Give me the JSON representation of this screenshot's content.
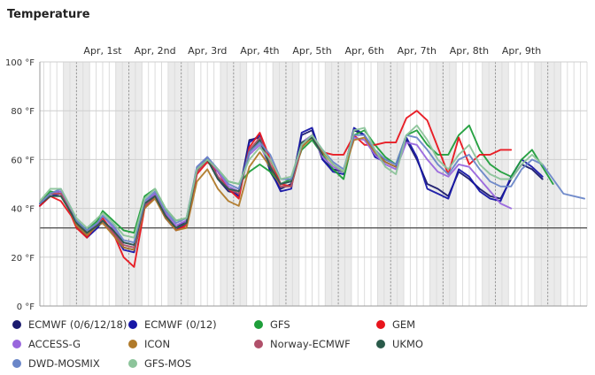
{
  "chart_data": {
    "type": "line",
    "title": "Temperature",
    "days": [
      "Apr, 1st",
      "Apr, 2nd",
      "Apr, 3rd",
      "Apr, 4th",
      "Apr, 5th",
      "Apr, 6th",
      "Apr, 7th",
      "Apr, 8th",
      "Apr, 9th"
    ],
    "y_ticks": [
      "100 °F",
      "80 °F",
      "60 °F",
      "40 °F",
      "20 °F",
      "0 °F"
    ],
    "ylim": [
      0,
      100
    ],
    "x_range_days": [
      0.3,
      10.75
    ],
    "reference_line": 32,
    "grid": true,
    "legend_position": "bottom",
    "series": [
      {
        "name": "ECMWF (0/6/12/18)",
        "color": "#1a1a6e",
        "x": [
          0.3,
          0.5,
          0.7,
          0.9,
          1.0,
          1.2,
          1.4,
          1.5,
          1.7,
          1.9,
          2.1,
          2.3,
          2.5,
          2.7,
          2.9,
          3.1,
          3.3,
          3.5,
          3.7,
          3.9,
          4.1,
          4.3,
          4.5,
          4.7,
          4.9,
          5.1,
          5.3,
          5.5,
          5.7,
          5.9,
          6.1,
          6.3,
          6.5,
          6.7,
          6.9,
          7.1,
          7.3,
          7.5,
          7.7,
          7.9,
          8.1,
          8.3,
          8.5,
          8.7,
          8.9,
          9.1,
          9.3,
          9.5,
          9.7,
          9.9
        ],
        "y": [
          41,
          46,
          47,
          38,
          34,
          29,
          33,
          35,
          31,
          24,
          23,
          42,
          46,
          37,
          32,
          35,
          56,
          60,
          52,
          47,
          46,
          68,
          69,
          55,
          48,
          50,
          70,
          72,
          60,
          56,
          55,
          72,
          70,
          62,
          60,
          58,
          68,
          60,
          50,
          48,
          45,
          55,
          52,
          48,
          45,
          44,
          52,
          58,
          56,
          52
        ]
      },
      {
        "name": "ECMWF (0/12)",
        "color": "#1616a6",
        "x": [
          0.3,
          0.5,
          0.7,
          0.9,
          1.0,
          1.2,
          1.4,
          1.5,
          1.7,
          1.9,
          2.1,
          2.3,
          2.5,
          2.7,
          2.9,
          3.1,
          3.3,
          3.5,
          3.7,
          3.9,
          4.1,
          4.3,
          4.5,
          4.7,
          4.9,
          5.1,
          5.3,
          5.5,
          5.7,
          5.9,
          6.1,
          6.3,
          6.5,
          6.7,
          6.9,
          7.1,
          7.3,
          7.5,
          7.7,
          7.9,
          8.1,
          8.3,
          8.5,
          8.7,
          8.9,
          9.1,
          9.3,
          9.5,
          9.7,
          9.9
        ],
        "y": [
          41,
          45,
          46,
          38,
          33,
          28,
          32,
          35,
          30,
          23,
          22,
          41,
          45,
          36,
          31,
          34,
          55,
          61,
          53,
          48,
          45,
          67,
          70,
          56,
          47,
          48,
          71,
          73,
          60,
          55,
          54,
          73,
          70,
          61,
          59,
          57,
          69,
          61,
          48,
          46,
          44,
          56,
          53,
          47,
          44,
          43,
          53,
          60,
          57,
          53
        ]
      },
      {
        "name": "GFS",
        "color": "#1e9e3a",
        "x": [
          0.3,
          0.5,
          0.7,
          0.9,
          1.0,
          1.2,
          1.4,
          1.5,
          1.7,
          1.9,
          2.1,
          2.3,
          2.5,
          2.7,
          2.9,
          3.1,
          3.3,
          3.5,
          3.7,
          3.9,
          4.1,
          4.3,
          4.5,
          4.7,
          4.9,
          5.1,
          5.3,
          5.5,
          5.7,
          5.9,
          6.1,
          6.3,
          6.5,
          6.7,
          6.9,
          7.1,
          7.3,
          7.5,
          7.7,
          7.9,
          8.1,
          8.3,
          8.5,
          8.7,
          8.9,
          9.1,
          9.3,
          9.5,
          9.7,
          9.9,
          10.1
        ],
        "y": [
          42,
          47,
          46,
          38,
          35,
          31,
          35,
          39,
          35,
          31,
          30,
          45,
          48,
          40,
          35,
          36,
          55,
          60,
          56,
          51,
          50,
          55,
          58,
          55,
          50,
          52,
          64,
          68,
          62,
          56,
          52,
          70,
          72,
          66,
          61,
          58,
          70,
          72,
          66,
          62,
          62,
          70,
          74,
          64,
          58,
          55,
          53,
          60,
          64,
          57,
          50
        ]
      },
      {
        "name": "GEM",
        "color": "#e8141c",
        "x": [
          0.3,
          0.5,
          0.7,
          0.9,
          1.0,
          1.2,
          1.4,
          1.5,
          1.7,
          1.9,
          2.1,
          2.3,
          2.5,
          2.7,
          2.9,
          3.1,
          3.3,
          3.5,
          3.7,
          3.9,
          4.1,
          4.3,
          4.5,
          4.7,
          4.9,
          5.1,
          5.3,
          5.5,
          5.7,
          5.9,
          6.1,
          6.3,
          6.5,
          6.7,
          6.9,
          7.1,
          7.3,
          7.5,
          7.7,
          7.9,
          8.1,
          8.3,
          8.5,
          8.7,
          8.9,
          9.1,
          9.3
        ],
        "y": [
          41,
          45,
          43,
          37,
          32,
          28,
          34,
          36,
          30,
          20,
          16,
          40,
          45,
          38,
          31,
          33,
          54,
          59,
          55,
          48,
          44,
          65,
          71,
          60,
          50,
          49,
          65,
          70,
          63,
          62,
          62,
          70,
          66,
          66,
          67,
          67,
          77,
          80,
          76,
          65,
          54,
          69,
          58,
          62,
          62,
          64,
          64
        ]
      },
      {
        "name": "ACCESS-G",
        "color": "#9966dd",
        "x": [
          0.3,
          0.5,
          0.7,
          0.9,
          1.0,
          1.2,
          1.4,
          1.5,
          1.7,
          1.9,
          2.1,
          2.3,
          2.5,
          2.7,
          2.9,
          3.1,
          3.3,
          3.5,
          3.7,
          3.9,
          4.1,
          4.3,
          4.5,
          4.7,
          4.9,
          5.1,
          5.3,
          5.5,
          5.7,
          5.9,
          6.1,
          6.3,
          6.5,
          6.7,
          6.9,
          7.1,
          7.3,
          7.5,
          7.7,
          7.9,
          8.1,
          8.3,
          8.5,
          8.7,
          8.9,
          9.1,
          9.3
        ],
        "y": [
          42,
          46,
          47,
          39,
          34,
          30,
          34,
          37,
          32,
          26,
          25,
          42,
          46,
          38,
          33,
          35,
          57,
          61,
          55,
          49,
          47,
          62,
          66,
          57,
          50,
          51,
          67,
          70,
          61,
          57,
          55,
          69,
          68,
          62,
          58,
          56,
          67,
          66,
          60,
          55,
          53,
          58,
          57,
          52,
          47,
          42,
          40
        ]
      },
      {
        "name": "ICON",
        "color": "#b07a2a",
        "x": [
          0.3,
          0.5,
          0.7,
          0.9,
          1.0,
          1.2,
          1.4,
          1.5,
          1.7,
          1.9,
          2.1,
          2.3,
          2.5,
          2.7,
          2.9,
          3.1,
          3.3,
          3.5,
          3.7,
          3.9,
          4.1,
          4.3,
          4.5,
          4.7,
          4.9,
          5.1,
          5.3,
          5.5,
          5.7,
          5.9,
          6.1,
          6.3,
          6.5,
          6.7,
          6.9,
          7.1
        ],
        "y": [
          42,
          46,
          46,
          38,
          33,
          29,
          33,
          34,
          29,
          24,
          23,
          40,
          44,
          36,
          31,
          32,
          51,
          56,
          48,
          43,
          41,
          57,
          63,
          57,
          49,
          49,
          65,
          69,
          63,
          58,
          55,
          68,
          69,
          63,
          59,
          57
        ]
      },
      {
        "name": "Norway-ECMWF",
        "color": "#b0506a",
        "x": [
          0.3,
          0.5,
          0.7,
          0.9,
          1.0,
          1.2,
          1.4,
          1.5,
          1.7,
          1.9,
          2.1,
          2.3,
          2.5,
          2.7,
          2.9,
          3.1,
          3.3,
          3.5,
          3.7,
          3.9,
          4.1,
          4.3,
          4.5,
          4.7,
          4.9,
          5.1,
          5.3,
          5.5,
          5.7
        ],
        "y": [
          42,
          46,
          46,
          38,
          34,
          30,
          33,
          35,
          30,
          25,
          24,
          41,
          45,
          37,
          32,
          34,
          55,
          60,
          53,
          48,
          46,
          64,
          69,
          58,
          49,
          49,
          66,
          70,
          62
        ]
      },
      {
        "name": "UKMO",
        "color": "#2a5a4a",
        "x": [
          0.3,
          0.5,
          0.7,
          0.9,
          1.0,
          1.2,
          1.4,
          1.5,
          1.7,
          1.9,
          2.1,
          2.3,
          2.5,
          2.7,
          2.9,
          3.1,
          3.3,
          3.5,
          3.7,
          3.9,
          4.1,
          4.3,
          4.5,
          4.7,
          4.9,
          5.1,
          5.3,
          5.5,
          5.7
        ],
        "y": [
          42,
          45,
          45,
          38,
          34,
          30,
          33,
          35,
          31,
          26,
          25,
          42,
          45,
          37,
          32,
          34,
          56,
          60,
          52,
          48,
          47,
          63,
          68,
          57,
          50,
          51,
          67,
          69,
          62
        ]
      },
      {
        "name": "DWD-MOSMIX",
        "color": "#6a86c8",
        "x": [
          0.3,
          0.5,
          0.7,
          0.9,
          1.0,
          1.2,
          1.4,
          1.5,
          1.7,
          1.9,
          2.1,
          2.3,
          2.5,
          2.7,
          2.9,
          3.1,
          3.3,
          3.5,
          3.7,
          3.9,
          4.1,
          4.3,
          4.5,
          4.7,
          4.9,
          5.1,
          5.3,
          5.5,
          5.7,
          5.9,
          6.1,
          6.3,
          6.5,
          6.7,
          6.9,
          7.1,
          7.3,
          7.5,
          7.7,
          7.9,
          8.1,
          8.3,
          8.5,
          8.7,
          8.9,
          9.1,
          9.3,
          9.5,
          9.7,
          9.9,
          10.1,
          10.3,
          10.5,
          10.7
        ],
        "y": [
          42,
          46,
          48,
          40,
          35,
          31,
          34,
          37,
          33,
          27,
          26,
          43,
          47,
          39,
          34,
          36,
          57,
          61,
          56,
          50,
          48,
          63,
          67,
          62,
          52,
          52,
          66,
          70,
          64,
          59,
          56,
          70,
          70,
          64,
          60,
          58,
          70,
          69,
          64,
          58,
          54,
          60,
          62,
          56,
          51,
          49,
          49,
          56,
          60,
          58,
          52,
          46,
          45,
          44
        ]
      },
      {
        "name": "GFS-MOS",
        "color": "#8cc49a",
        "x": [
          0.3,
          0.5,
          0.7,
          0.9,
          1.0,
          1.2,
          1.4,
          1.5,
          1.7,
          1.9,
          2.1,
          2.3,
          2.5,
          2.7,
          2.9,
          3.1,
          3.3,
          3.5,
          3.7,
          3.9,
          4.1,
          4.3,
          4.5,
          4.7,
          4.9,
          5.1,
          5.3,
          5.5,
          5.7,
          5.9,
          6.1,
          6.3,
          6.5,
          6.7,
          6.9,
          7.1,
          7.3,
          7.5,
          7.7,
          7.9,
          8.1,
          8.3,
          8.5,
          8.7,
          8.9,
          9.1,
          9.3,
          9.5,
          9.7,
          9.9
        ],
        "y": [
          43,
          48,
          48,
          40,
          36,
          32,
          36,
          38,
          34,
          29,
          28,
          44,
          48,
          40,
          35,
          36,
          56,
          60,
          56,
          51,
          50,
          60,
          65,
          60,
          52,
          53,
          66,
          70,
          64,
          58,
          55,
          72,
          73,
          64,
          57,
          54,
          70,
          74,
          68,
          60,
          56,
          62,
          66,
          58,
          54,
          52,
          52,
          58,
          62,
          58
        ]
      }
    ]
  }
}
